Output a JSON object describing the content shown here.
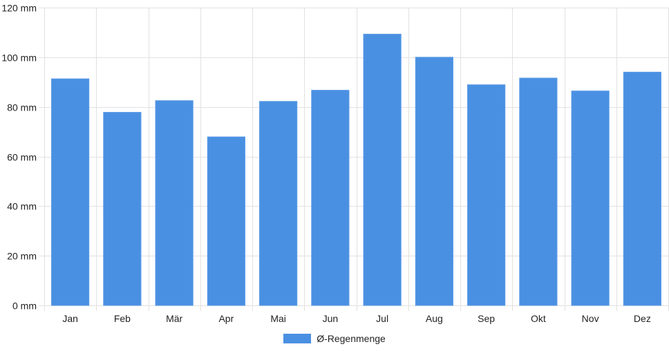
{
  "chart_data": {
    "type": "bar",
    "categories": [
      "Jan",
      "Feb",
      "Mär",
      "Apr",
      "Mai",
      "Jun",
      "Jul",
      "Aug",
      "Sep",
      "Okt",
      "Nov",
      "Dez"
    ],
    "series": [
      {
        "name": "Ø-Regenmenge",
        "values": [
          91.3,
          77.8,
          82.5,
          67.9,
          82.2,
          86.7,
          109.3,
          100.0,
          88.9,
          91.6,
          86.4,
          94.0
        ],
        "color": "#4a90e2"
      }
    ],
    "y_unit": "mm",
    "ylim": [
      0,
      120
    ],
    "y_ticks": [
      0,
      20,
      40,
      60,
      80,
      100,
      120
    ],
    "y_tick_labels": [
      "0 mm",
      "20 mm",
      "40 mm",
      "60 mm",
      "80 mm",
      "100 mm",
      "120 mm"
    ],
    "grid": true,
    "grid_color": "#e1e1e1",
    "legend_position": "bottom-center"
  },
  "legend": {
    "label": "Ø-Regenmenge",
    "color": "#4a90e2"
  }
}
